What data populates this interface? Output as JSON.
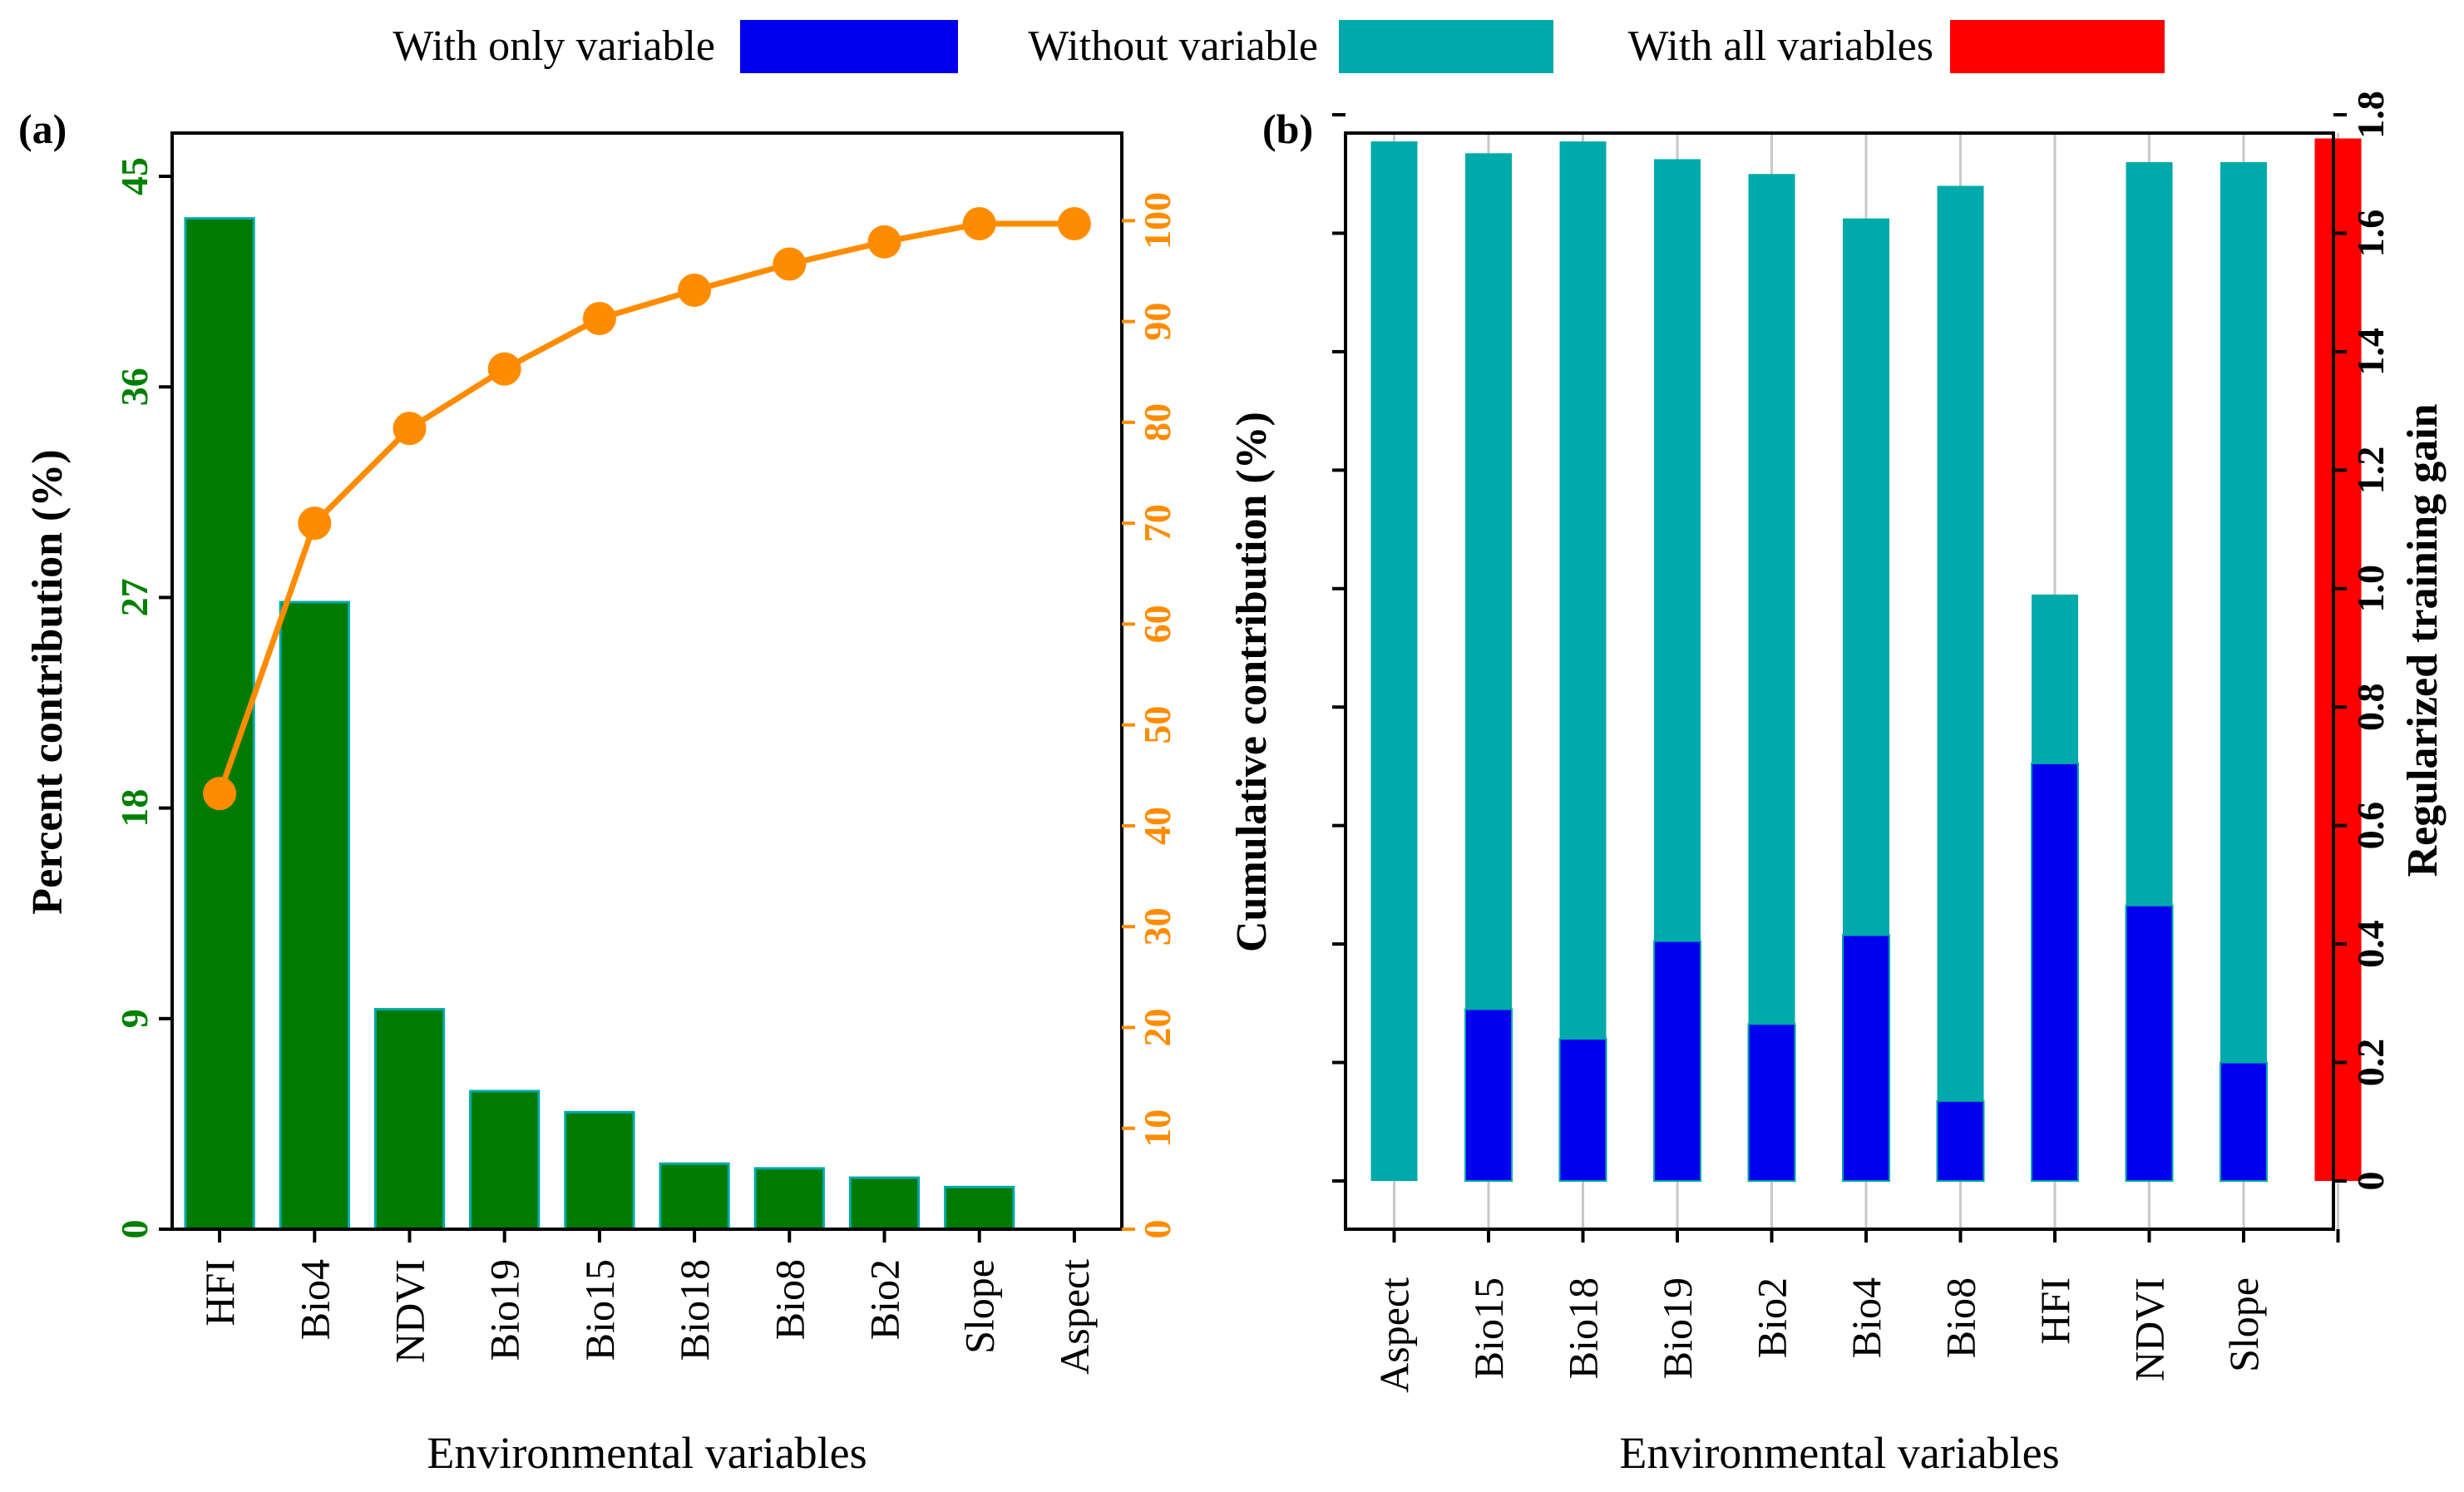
{
  "legend": {
    "items": [
      {
        "label": "With only variable",
        "color": "#0000ee"
      },
      {
        "label": "Without variable",
        "color": "#00aaaa"
      },
      {
        "label": "With all variables",
        "color": "#ff0000"
      }
    ]
  },
  "panel_a": {
    "label": "(a)"
  },
  "panel_b": {
    "label": "(b)"
  },
  "chart_data": [
    {
      "type": "bar",
      "panel": "(a)",
      "categories": [
        "HFI",
        "Bio4",
        "NDVI",
        "Bio19",
        "Bio15",
        "Bio18",
        "Bio8",
        "Bio2",
        "Slope",
        "Aspect"
      ],
      "series": [
        {
          "name": "Percent contribution",
          "type": "bar",
          "color": "#007a00",
          "values": [
            43.2,
            26.8,
            9.4,
            5.9,
            5.0,
            2.8,
            2.6,
            2.2,
            1.8,
            0.0
          ]
        },
        {
          "name": "Cumulative contribution",
          "type": "line",
          "color": "#ff8c00",
          "values": [
            43.2,
            70.0,
            79.4,
            85.3,
            90.3,
            93.1,
            95.7,
            97.9,
            99.7,
            99.7
          ]
        }
      ],
      "xlabel": "Environmental variables",
      "ylabel": "Percent contribution (%)",
      "ylabel2": "Cumulative contribution (%)",
      "ylim": [
        0,
        45
      ],
      "yticks": [
        0,
        9,
        18,
        27,
        36,
        45
      ],
      "ylim2": [
        0,
        104.4
      ],
      "yticks2": [
        0,
        10,
        20,
        30,
        40,
        50,
        60,
        70,
        80,
        90,
        100
      ]
    },
    {
      "type": "bar",
      "panel": "(b)",
      "categories": [
        "Aspect",
        "Bio15",
        "Bio18",
        "Bio19",
        "Bio2",
        "Bio4",
        "Bio8",
        "HFI",
        "NDVI",
        "Slope",
        ""
      ],
      "series": [
        {
          "name": "Without variable",
          "color": "#00aaaa",
          "values": [
            1.755,
            1.735,
            1.755,
            1.725,
            1.7,
            1.625,
            1.68,
            0.99,
            1.72,
            1.72,
            null
          ]
        },
        {
          "name": "With only variable",
          "color": "#0000ee",
          "values": [
            0.0,
            0.29,
            0.24,
            0.405,
            0.265,
            0.415,
            0.135,
            0.705,
            0.465,
            0.2,
            null
          ]
        },
        {
          "name": "With all variables",
          "color": "#ff0000",
          "values": [
            null,
            null,
            null,
            null,
            null,
            null,
            null,
            null,
            null,
            null,
            1.76
          ]
        }
      ],
      "xlabel": "Environmental variables",
      "ylabel": "Regularized training gain",
      "ylim": [
        0,
        1.8
      ],
      "yticks": [
        "0",
        "0.2",
        "0.4",
        "0.6",
        "0.8",
        "1.0",
        "1.2",
        "1.4",
        "1.6",
        "1.8"
      ]
    }
  ]
}
